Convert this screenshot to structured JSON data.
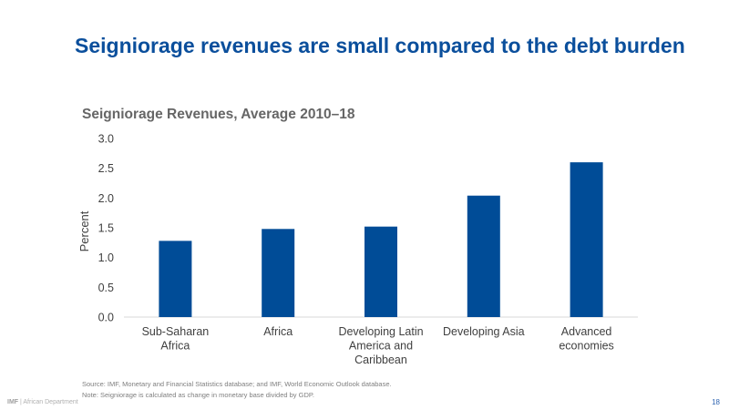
{
  "slide": {
    "title": "Seigniorage revenues are small compared to the debt burden",
    "page_number": "18",
    "footer_org": "IMF",
    "footer_dept": " | African Department"
  },
  "notes": {
    "source": "Source: IMF, Monetary and Financial Statistics database; and IMF, World Economic Outlook database.",
    "note": "Note: Seigniorage is calculated as change in monetary base divided by GDP."
  },
  "chart_data": {
    "type": "bar",
    "title": "Seigniorage Revenues, Average 2010–18",
    "xlabel": "",
    "ylabel": "Percent",
    "ylim": [
      0,
      3.0
    ],
    "yticks": [
      "0.0",
      "0.5",
      "1.0",
      "1.5",
      "2.0",
      "2.5",
      "3.0"
    ],
    "grid": false,
    "categories": [
      [
        "Sub-Saharan",
        "Africa"
      ],
      [
        "Africa"
      ],
      [
        "Developing Latin",
        "America and",
        "Caribbean"
      ],
      [
        "Developing Asia"
      ],
      [
        "Advanced",
        "economies"
      ]
    ],
    "values": [
      1.28,
      1.48,
      1.52,
      2.04,
      2.6
    ],
    "bar_color": "#004c97"
  }
}
